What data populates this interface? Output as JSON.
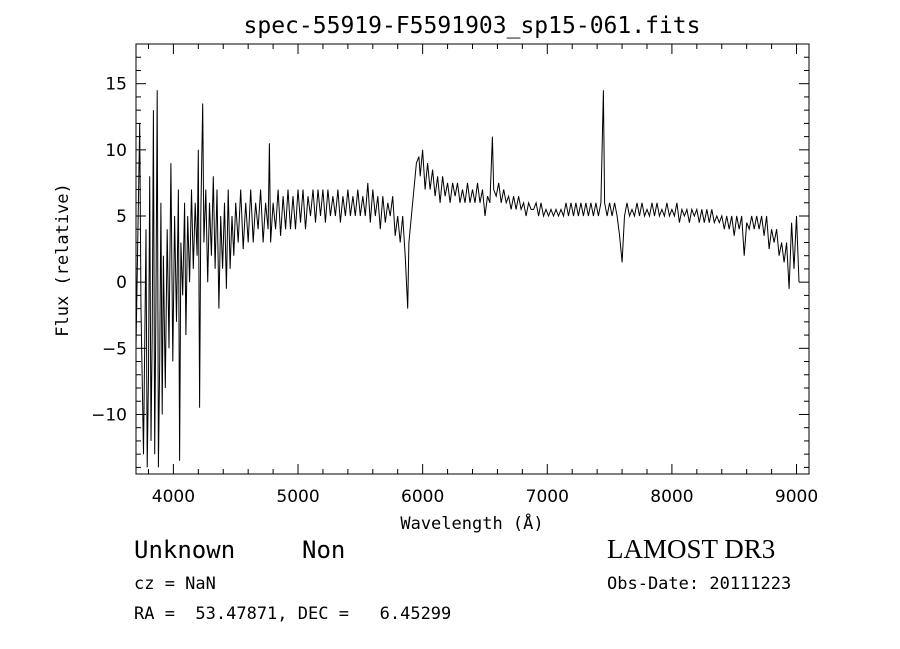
{
  "chart_data": {
    "type": "line",
    "title": "spec-55919-F5591903_sp15-061.fits",
    "xlabel": "Wavelength (Å)",
    "ylabel": "Flux (relative)",
    "xlim": [
      3700,
      9100
    ],
    "ylim": [
      -14.5,
      18
    ],
    "xticks": [
      4000,
      5000,
      6000,
      7000,
      8000,
      9000
    ],
    "yticks": [
      -10,
      -5,
      0,
      5,
      10,
      15
    ],
    "grid": false,
    "series": [
      {
        "values": [
          [
            3700,
            -5
          ],
          [
            3730,
            12
          ],
          [
            3740,
            -2
          ],
          [
            3760,
            -13
          ],
          [
            3780,
            4
          ],
          [
            3790,
            -14
          ],
          [
            3800,
            -7
          ],
          [
            3810,
            8
          ],
          [
            3820,
            -12
          ],
          [
            3830,
            -4
          ],
          [
            3840,
            13
          ],
          [
            3850,
            -13
          ],
          [
            3860,
            -2
          ],
          [
            3870,
            14.5
          ],
          [
            3880,
            -14
          ],
          [
            3890,
            -6
          ],
          [
            3900,
            6
          ],
          [
            3910,
            -10
          ],
          [
            3920,
            2
          ],
          [
            3935,
            -8
          ],
          [
            3950,
            4
          ],
          [
            3965,
            -5
          ],
          [
            3980,
            9
          ],
          [
            3995,
            -6
          ],
          [
            4010,
            5
          ],
          [
            4025,
            -3
          ],
          [
            4040,
            7
          ],
          [
            4050,
            -13.5
          ],
          [
            4060,
            3
          ],
          [
            4075,
            -1
          ],
          [
            4090,
            6
          ],
          [
            4100,
            -4
          ],
          [
            4115,
            5
          ],
          [
            4130,
            0
          ],
          [
            4145,
            7
          ],
          [
            4160,
            1
          ],
          [
            4175,
            6
          ],
          [
            4190,
            2
          ],
          [
            4200,
            10
          ],
          [
            4210,
            -9.5
          ],
          [
            4220,
            5
          ],
          [
            4235,
            13.5
          ],
          [
            4245,
            3
          ],
          [
            4260,
            7
          ],
          [
            4275,
            0
          ],
          [
            4290,
            6
          ],
          [
            4305,
            2
          ],
          [
            4320,
            8
          ],
          [
            4335,
            1
          ],
          [
            4350,
            7
          ],
          [
            4365,
            -2
          ],
          [
            4380,
            5
          ],
          [
            4395,
            1
          ],
          [
            4410,
            6
          ],
          [
            4425,
            -0.5
          ],
          [
            4440,
            7
          ],
          [
            4455,
            1
          ],
          [
            4470,
            5
          ],
          [
            4485,
            2
          ],
          [
            4500,
            6
          ],
          [
            4520,
            3
          ],
          [
            4540,
            7
          ],
          [
            4560,
            2.5
          ],
          [
            4580,
            6
          ],
          [
            4600,
            3
          ],
          [
            4620,
            7
          ],
          [
            4640,
            3
          ],
          [
            4660,
            6
          ],
          [
            4680,
            4
          ],
          [
            4700,
            7
          ],
          [
            4720,
            3
          ],
          [
            4740,
            6
          ],
          [
            4760,
            4
          ],
          [
            4770,
            10.5
          ],
          [
            4780,
            3
          ],
          [
            4800,
            6
          ],
          [
            4820,
            4
          ],
          [
            4840,
            7
          ],
          [
            4860,
            3.5
          ],
          [
            4880,
            6.5
          ],
          [
            4900,
            4
          ],
          [
            4920,
            7
          ],
          [
            4940,
            4
          ],
          [
            4960,
            6.5
          ],
          [
            4980,
            4
          ],
          [
            5000,
            7
          ],
          [
            5020,
            4.5
          ],
          [
            5040,
            7
          ],
          [
            5060,
            4
          ],
          [
            5080,
            6.5
          ],
          [
            5100,
            5
          ],
          [
            5120,
            7
          ],
          [
            5140,
            4.5
          ],
          [
            5160,
            7
          ],
          [
            5180,
            5
          ],
          [
            5200,
            7
          ],
          [
            5220,
            4.5
          ],
          [
            5240,
            7
          ],
          [
            5260,
            5
          ],
          [
            5280,
            6.5
          ],
          [
            5300,
            5
          ],
          [
            5320,
            7
          ],
          [
            5340,
            4.5
          ],
          [
            5360,
            6.5
          ],
          [
            5380,
            5
          ],
          [
            5400,
            7
          ],
          [
            5420,
            5
          ],
          [
            5440,
            6.5
          ],
          [
            5460,
            5
          ],
          [
            5480,
            7
          ],
          [
            5500,
            5
          ],
          [
            5520,
            6.5
          ],
          [
            5540,
            5
          ],
          [
            5560,
            7.5
          ],
          [
            5580,
            4.5
          ],
          [
            5600,
            7
          ],
          [
            5620,
            5
          ],
          [
            5640,
            6.5
          ],
          [
            5660,
            4
          ],
          [
            5680,
            6.5
          ],
          [
            5700,
            4.5
          ],
          [
            5720,
            6
          ],
          [
            5740,
            5
          ],
          [
            5760,
            6.5
          ],
          [
            5780,
            3.5
          ],
          [
            5800,
            5
          ],
          [
            5820,
            3
          ],
          [
            5840,
            5
          ],
          [
            5860,
            2
          ],
          [
            5880,
            -2
          ],
          [
            5890,
            3
          ],
          [
            5910,
            5
          ],
          [
            5930,
            7
          ],
          [
            5950,
            9
          ],
          [
            5970,
            9.5
          ],
          [
            5980,
            8
          ],
          [
            6000,
            10
          ],
          [
            6020,
            7
          ],
          [
            6040,
            9
          ],
          [
            6060,
            7
          ],
          [
            6080,
            8.5
          ],
          [
            6100,
            6.5
          ],
          [
            6120,
            8
          ],
          [
            6140,
            6
          ],
          [
            6160,
            8
          ],
          [
            6180,
            6.5
          ],
          [
            6200,
            7.5
          ],
          [
            6220,
            6
          ],
          [
            6240,
            7.5
          ],
          [
            6260,
            6.5
          ],
          [
            6280,
            7.5
          ],
          [
            6300,
            6
          ],
          [
            6320,
            7
          ],
          [
            6340,
            6
          ],
          [
            6360,
            7.5
          ],
          [
            6380,
            6
          ],
          [
            6400,
            7
          ],
          [
            6420,
            6
          ],
          [
            6440,
            7.5
          ],
          [
            6460,
            6
          ],
          [
            6480,
            7
          ],
          [
            6500,
            5
          ],
          [
            6520,
            6.5
          ],
          [
            6540,
            6
          ],
          [
            6560,
            11
          ],
          [
            6570,
            7
          ],
          [
            6590,
            6.5
          ],
          [
            6610,
            7.5
          ],
          [
            6630,
            6
          ],
          [
            6650,
            7
          ],
          [
            6670,
            6
          ],
          [
            6690,
            6.5
          ],
          [
            6710,
            5.5
          ],
          [
            6730,
            6.5
          ],
          [
            6750,
            5.5
          ],
          [
            6770,
            6.5
          ],
          [
            6790,
            5.5
          ],
          [
            6810,
            6
          ],
          [
            6830,
            5
          ],
          [
            6850,
            6
          ],
          [
            6870,
            5.5
          ],
          [
            6890,
            5.5
          ],
          [
            6910,
            6
          ],
          [
            6930,
            5
          ],
          [
            6950,
            6
          ],
          [
            6970,
            5
          ],
          [
            6990,
            5.5
          ],
          [
            7010,
            5
          ],
          [
            7030,
            5.5
          ],
          [
            7050,
            5
          ],
          [
            7070,
            5.5
          ],
          [
            7090,
            5
          ],
          [
            7110,
            5.5
          ],
          [
            7130,
            5
          ],
          [
            7150,
            6
          ],
          [
            7170,
            5
          ],
          [
            7190,
            6
          ],
          [
            7210,
            5
          ],
          [
            7230,
            6
          ],
          [
            7250,
            5
          ],
          [
            7270,
            6
          ],
          [
            7290,
            5
          ],
          [
            7310,
            6
          ],
          [
            7330,
            5
          ],
          [
            7350,
            6
          ],
          [
            7370,
            5
          ],
          [
            7390,
            6
          ],
          [
            7410,
            5
          ],
          [
            7430,
            6
          ],
          [
            7450,
            14.5
          ],
          [
            7460,
            6
          ],
          [
            7480,
            5
          ],
          [
            7500,
            6
          ],
          [
            7520,
            5
          ],
          [
            7540,
            6
          ],
          [
            7560,
            5
          ],
          [
            7580,
            3.5
          ],
          [
            7600,
            1.5
          ],
          [
            7620,
            5
          ],
          [
            7640,
            6
          ],
          [
            7660,
            5
          ],
          [
            7680,
            5.5
          ],
          [
            7700,
            5
          ],
          [
            7720,
            6
          ],
          [
            7740,
            5
          ],
          [
            7760,
            6
          ],
          [
            7780,
            5
          ],
          [
            7800,
            5.5
          ],
          [
            7820,
            5
          ],
          [
            7840,
            6
          ],
          [
            7860,
            5
          ],
          [
            7880,
            6
          ],
          [
            7900,
            5
          ],
          [
            7920,
            5.5
          ],
          [
            7940,
            5
          ],
          [
            7960,
            6
          ],
          [
            7980,
            5
          ],
          [
            8000,
            5.5
          ],
          [
            8020,
            5
          ],
          [
            8040,
            6
          ],
          [
            8060,
            4.5
          ],
          [
            8080,
            5.5
          ],
          [
            8100,
            5
          ],
          [
            8120,
            5.5
          ],
          [
            8140,
            4.5
          ],
          [
            8160,
            5.5
          ],
          [
            8180,
            5
          ],
          [
            8200,
            5.5
          ],
          [
            8220,
            4.5
          ],
          [
            8240,
            5.5
          ],
          [
            8260,
            4.5
          ],
          [
            8280,
            5.5
          ],
          [
            8300,
            4.5
          ],
          [
            8320,
            5.5
          ],
          [
            8340,
            4.5
          ],
          [
            8360,
            5
          ],
          [
            8380,
            4.5
          ],
          [
            8400,
            5
          ],
          [
            8420,
            4
          ],
          [
            8440,
            5
          ],
          [
            8460,
            4
          ],
          [
            8480,
            5
          ],
          [
            8500,
            3.5
          ],
          [
            8520,
            5
          ],
          [
            8540,
            4
          ],
          [
            8560,
            5
          ],
          [
            8580,
            2
          ],
          [
            8600,
            4.5
          ],
          [
            8620,
            4
          ],
          [
            8640,
            5
          ],
          [
            8660,
            4
          ],
          [
            8680,
            5
          ],
          [
            8700,
            4
          ],
          [
            8720,
            5
          ],
          [
            8740,
            3.5
          ],
          [
            8760,
            5
          ],
          [
            8780,
            2.5
          ],
          [
            8800,
            4
          ],
          [
            8820,
            3
          ],
          [
            8840,
            4
          ],
          [
            8860,
            2
          ],
          [
            8880,
            3
          ],
          [
            8900,
            1.5
          ],
          [
            8920,
            3
          ],
          [
            8940,
            -0.5
          ],
          [
            8960,
            4.5
          ],
          [
            8980,
            1
          ],
          [
            9000,
            5
          ],
          [
            9020,
            0
          ]
        ]
      }
    ]
  },
  "footer": {
    "object_class": "Unknown",
    "object_subclass": "Non",
    "survey": "LAMOST DR3",
    "cz": "cz = NaN",
    "obs_date": "Obs-Date: 20111223",
    "coords": "RA =  53.47871, DEC =   6.45299"
  }
}
